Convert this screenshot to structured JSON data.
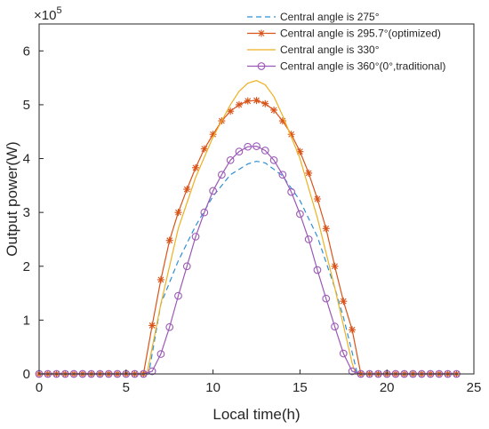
{
  "chart_data": {
    "type": "line",
    "title": "",
    "xlabel": "Local time(h)",
    "ylabel": "Output power(W)",
    "y_multiplier_label": "×10",
    "y_multiplier_exponent": "5",
    "xlim": [
      0,
      25
    ],
    "ylim": [
      0,
      650000
    ],
    "xticks": [
      0,
      5,
      10,
      15,
      20,
      25
    ],
    "yticks": [
      0,
      100000,
      200000,
      300000,
      400000,
      500000,
      600000
    ],
    "ytick_labels": [
      "0",
      "1",
      "2",
      "3",
      "4",
      "5",
      "6"
    ],
    "grid": false,
    "legend_position": "top-right",
    "series": [
      {
        "name": "Central angle is 275°",
        "color": "#2f8fd4",
        "style": "dashed",
        "marker": "none",
        "x": [
          0,
          6.3,
          7,
          8,
          9,
          10,
          11,
          12,
          12.5,
          13,
          14,
          15,
          16,
          17,
          17.5,
          18,
          18.3,
          19,
          24
        ],
        "y": [
          0,
          0,
          130000,
          210000,
          275000,
          330000,
          370000,
          390000,
          395000,
          392000,
          368000,
          322000,
          255000,
          160000,
          105000,
          40000,
          0,
          0,
          0
        ]
      },
      {
        "name": "Central angle is 295.7°(optimized)",
        "color": "#d95319",
        "style": "solid",
        "marker": "asterisk",
        "x": [
          0,
          0.5,
          1,
          1.5,
          2,
          2.5,
          3,
          3.5,
          4,
          4.5,
          5,
          5.5,
          6,
          6.5,
          7,
          7.5,
          8,
          8.5,
          9,
          9.5,
          10,
          10.5,
          11,
          11.5,
          12,
          12.5,
          13,
          13.5,
          14,
          14.5,
          15,
          15.5,
          16,
          16.5,
          17,
          17.5,
          18,
          18.5,
          19,
          19.5,
          20,
          20.5,
          21,
          21.5,
          22,
          22.5,
          23,
          23.5,
          24
        ],
        "y": [
          0,
          0,
          0,
          0,
          0,
          0,
          0,
          0,
          0,
          0,
          0,
          0,
          0,
          90000,
          175000,
          248000,
          300000,
          343000,
          383000,
          418000,
          445000,
          470000,
          488000,
          500000,
          507000,
          508000,
          502000,
          490000,
          470000,
          445000,
          413000,
          373000,
          325000,
          270000,
          200000,
          135000,
          82000,
          0,
          0,
          0,
          0,
          0,
          0,
          0,
          0,
          0,
          0,
          0,
          0
        ]
      },
      {
        "name": "Central angle is 330°",
        "color": "#edb120",
        "style": "solid",
        "marker": "none",
        "x": [
          0,
          6.2,
          7,
          8,
          9,
          10,
          11,
          11.5,
          12,
          12.5,
          13,
          13.5,
          14,
          15,
          16,
          17,
          17.5,
          18,
          18.2,
          19,
          24
        ],
        "y": [
          0,
          0,
          130000,
          270000,
          365000,
          440000,
          500000,
          525000,
          540000,
          545000,
          537000,
          515000,
          480000,
          400000,
          290000,
          160000,
          90000,
          20000,
          0,
          0,
          0
        ]
      },
      {
        "name": "Central angle is 360°(0°,traditional)",
        "color": "#9b59b6",
        "style": "solid",
        "marker": "circle",
        "x": [
          0,
          0.5,
          1,
          1.5,
          2,
          2.5,
          3,
          3.5,
          4,
          4.5,
          5,
          5.5,
          6,
          6.5,
          7,
          7.5,
          8,
          8.5,
          9,
          9.5,
          10,
          10.5,
          11,
          11.5,
          12,
          12.5,
          13,
          13.5,
          14,
          14.5,
          15,
          15.5,
          16,
          16.5,
          17,
          17.5,
          18,
          18.5,
          19,
          19.5,
          20,
          20.5,
          21,
          21.5,
          22,
          22.5,
          23,
          23.5,
          24
        ],
        "y": [
          0,
          0,
          0,
          0,
          0,
          0,
          0,
          0,
          0,
          0,
          0,
          0,
          0,
          5000,
          37000,
          87000,
          145000,
          200000,
          255000,
          300000,
          340000,
          370000,
          397000,
          413000,
          422000,
          423000,
          415000,
          397000,
          370000,
          338000,
          297000,
          250000,
          193000,
          140000,
          88000,
          38000,
          5000,
          0,
          0,
          0,
          0,
          0,
          0,
          0,
          0,
          0,
          0,
          0,
          0
        ]
      }
    ]
  }
}
